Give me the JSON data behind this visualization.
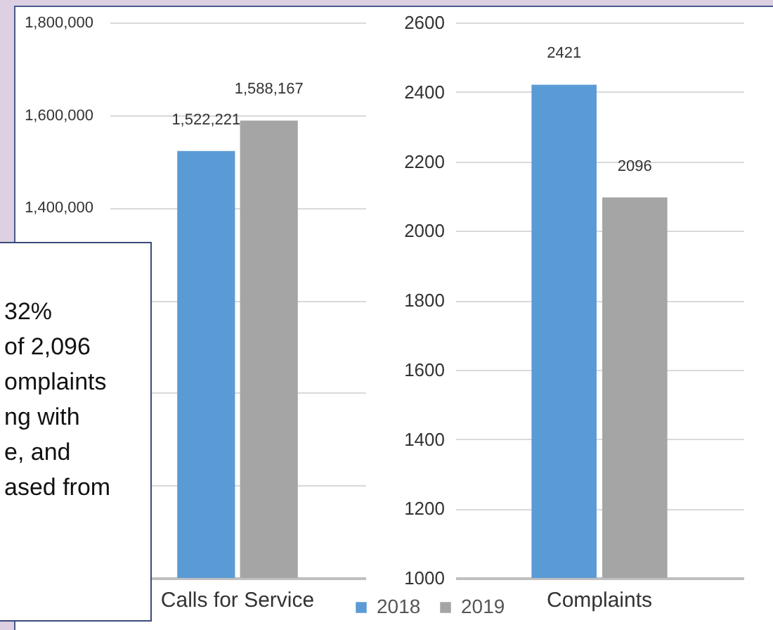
{
  "chart_data": [
    {
      "type": "bar",
      "categories": [
        "Calls for Service"
      ],
      "series": [
        {
          "name": "2018",
          "color": "#5b9bd5",
          "values": [
            1522221
          ],
          "value_labels": [
            "1,522,221"
          ]
        },
        {
          "name": "2019",
          "color": "#a5a5a5",
          "values": [
            1588167
          ],
          "value_labels": [
            "1,588,167"
          ]
        }
      ],
      "ylim": [
        600000,
        1800000
      ],
      "yticks": [
        {
          "value": 600000,
          "label": null
        },
        {
          "value": 800000,
          "label": null
        },
        {
          "value": 1000000,
          "label": null
        },
        {
          "value": 1200000,
          "label": null
        },
        {
          "value": 1400000,
          "label": "1,400,000"
        },
        {
          "value": 1600000,
          "label": "1,600,000"
        },
        {
          "value": 1800000,
          "label": "1,800,000"
        }
      ],
      "grid": "y",
      "legend": "bottom right",
      "annotations": [
        "32%",
        "of 2,096",
        "omplaints",
        "ng with",
        "e, and",
        "ased from"
      ]
    },
    {
      "type": "bar",
      "categories": [
        "Complaints"
      ],
      "series": [
        {
          "name": "2018",
          "color": "#5b9bd5",
          "values": [
            2421
          ],
          "value_labels": [
            "2421"
          ]
        },
        {
          "name": "2019",
          "color": "#a5a5a5",
          "values": [
            2096
          ],
          "value_labels": [
            "2096"
          ]
        }
      ],
      "ylim": [
        1000,
        2600
      ],
      "yticks": [
        1000,
        1200,
        1400,
        1600,
        1800,
        2000,
        2200,
        2400,
        2600
      ],
      "grid": "y"
    }
  ]
}
